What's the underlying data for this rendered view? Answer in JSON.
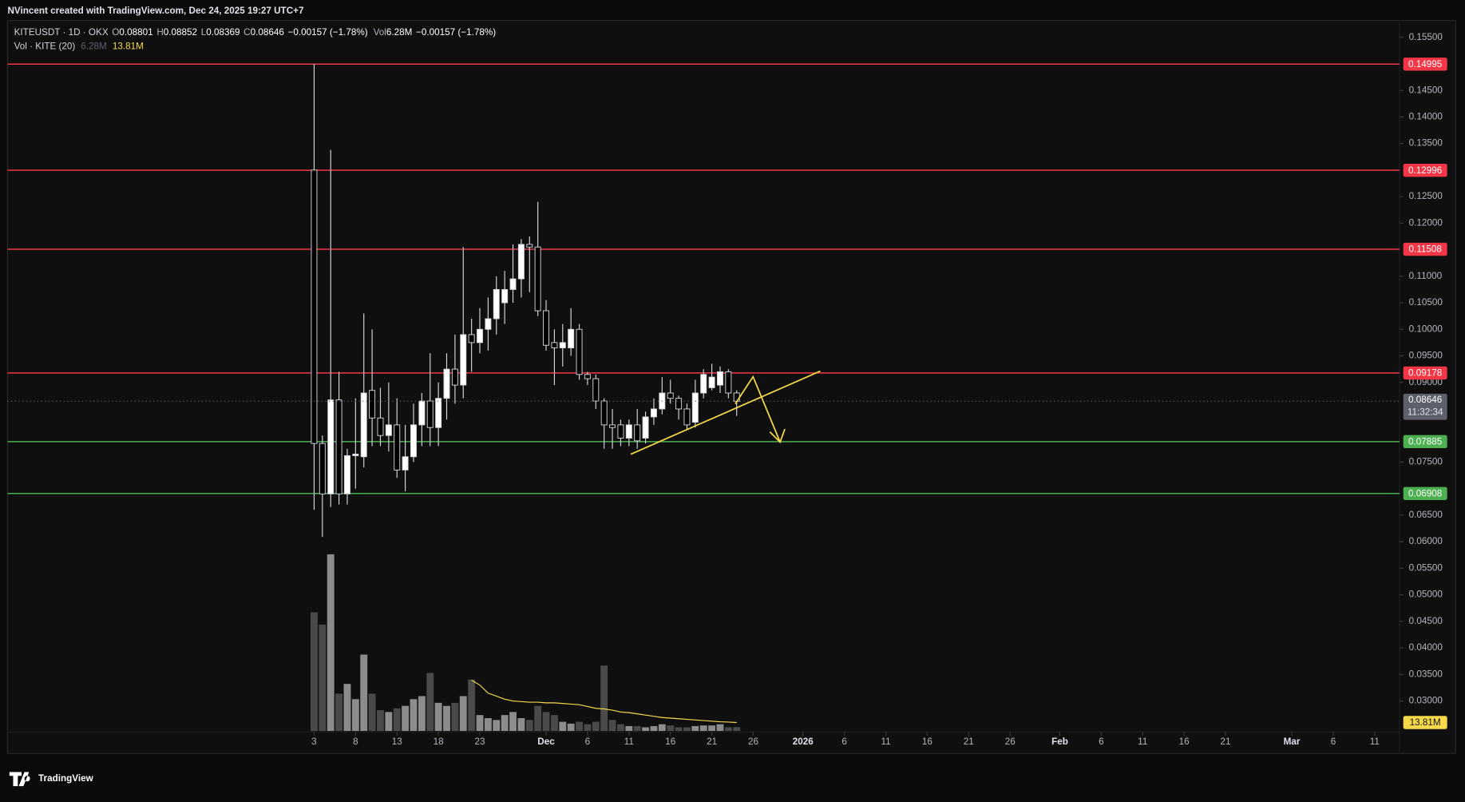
{
  "header": {
    "caption": "NVincent created with TradingView.com, Dec 24, 2025 19:27 UTC+7"
  },
  "footer": {
    "brand": "TradingView"
  },
  "chart_data": {
    "type": "candlestick",
    "symbol": "KITEUSDT · 1D · OKX",
    "legend_keys": [
      "O",
      "H",
      "L",
      "C"
    ],
    "change": "−0.00157 (−1.78%)",
    "volume_key": "Vol",
    "volume_label": "6.28M",
    "volume_indicator": "Vol · KITE (20)",
    "volume_ma_label": "13.81M",
    "countdown": "11:32:34",
    "up_color": "#ffffff",
    "down_color": "#000000",
    "wick_color": "#d1d4dc",
    "volume_up_color": "#8c8c8c",
    "volume_down_color": "#4a4a4a",
    "volume_ma_color": "#f5d94a",
    "last_price_color": "#5d606b",
    "x": [
      "2025-11-03",
      "2025-11-04",
      "2025-11-05",
      "2025-11-06",
      "2025-11-07",
      "2025-11-08",
      "2025-11-09",
      "2025-11-10",
      "2025-11-11",
      "2025-11-12",
      "2025-11-13",
      "2025-11-14",
      "2025-11-15",
      "2025-11-16",
      "2025-11-17",
      "2025-11-18",
      "2025-11-19",
      "2025-11-20",
      "2025-11-21",
      "2025-11-22",
      "2025-11-23",
      "2025-11-24",
      "2025-11-25",
      "2025-11-26",
      "2025-11-27",
      "2025-11-28",
      "2025-11-29",
      "2025-11-30",
      "2025-12-01",
      "2025-12-02",
      "2025-12-03",
      "2025-12-04",
      "2025-12-05",
      "2025-12-06",
      "2025-12-07",
      "2025-12-08",
      "2025-12-09",
      "2025-12-10",
      "2025-12-11",
      "2025-12-12",
      "2025-12-13",
      "2025-12-14",
      "2025-12-15",
      "2025-12-16",
      "2025-12-17",
      "2025-12-18",
      "2025-12-19",
      "2025-12-20",
      "2025-12-21",
      "2025-12-22",
      "2025-12-23",
      "2025-12-24"
    ],
    "open": [
      0.13,
      0.0785,
      0.069,
      0.0867,
      0.069,
      0.0762,
      0.076,
      0.0885,
      0.0833,
      0.08,
      0.082,
      0.0735,
      0.076,
      0.082,
      0.0865,
      0.0815,
      0.087,
      0.0925,
      0.0895,
      0.099,
      0.0975,
      0.1,
      0.102,
      0.105,
      0.1075,
      0.1095,
      0.116,
      0.1155,
      0.1035,
      0.0975,
      0.0965,
      0.0965,
      0.1,
      0.0915,
      0.0907,
      0.0865,
      0.082,
      0.082,
      0.0795,
      0.082,
      0.0795,
      0.0835,
      0.085,
      0.088,
      0.087,
      0.085,
      0.0825,
      0.088,
      0.089,
      0.0895,
      0.092,
      0.08801
    ],
    "high": [
      0.15,
      0.08,
      0.1338,
      0.092,
      0.0775,
      0.087,
      0.103,
      0.1,
      0.089,
      0.09,
      0.087,
      0.082,
      0.086,
      0.088,
      0.0955,
      0.09,
      0.0955,
      0.099,
      0.1155,
      0.102,
      0.104,
      0.106,
      0.11,
      0.111,
      0.116,
      0.117,
      0.1175,
      0.124,
      0.1055,
      0.1,
      0.101,
      0.104,
      0.101,
      0.092,
      0.0915,
      0.087,
      0.085,
      0.083,
      0.083,
      0.085,
      0.0845,
      0.087,
      0.091,
      0.0905,
      0.0875,
      0.086,
      0.0905,
      0.0925,
      0.0935,
      0.093,
      0.0925,
      0.08852
    ],
    "low": [
      0.066,
      0.0609,
      0.0665,
      0.067,
      0.067,
      0.07,
      0.074,
      0.078,
      0.078,
      0.077,
      0.072,
      0.0695,
      0.075,
      0.078,
      0.078,
      0.078,
      0.083,
      0.086,
      0.087,
      0.092,
      0.0955,
      0.096,
      0.099,
      0.101,
      0.105,
      0.106,
      0.107,
      0.1025,
      0.096,
      0.0895,
      0.093,
      0.095,
      0.0905,
      0.0895,
      0.085,
      0.0775,
      0.0775,
      0.078,
      0.078,
      0.0775,
      0.0785,
      0.082,
      0.084,
      0.086,
      0.083,
      0.081,
      0.0815,
      0.087,
      0.0885,
      0.088,
      0.087,
      0.08369
    ],
    "close": [
      0.0785,
      0.069,
      0.0867,
      0.069,
      0.0762,
      0.0765,
      0.088,
      0.0833,
      0.08,
      0.082,
      0.0735,
      0.076,
      0.082,
      0.0865,
      0.0815,
      0.087,
      0.0925,
      0.0895,
      0.099,
      0.0975,
      0.1,
      0.102,
      0.1075,
      0.1075,
      0.1095,
      0.116,
      0.1155,
      0.1035,
      0.097,
      0.0965,
      0.0975,
      0.1,
      0.0915,
      0.0907,
      0.0865,
      0.082,
      0.0815,
      0.0795,
      0.082,
      0.079,
      0.0835,
      0.085,
      0.088,
      0.087,
      0.085,
      0.082,
      0.088,
      0.0915,
      0.091,
      0.092,
      0.088,
      0.08646
    ],
    "volume": [
      194000000,
      174000000,
      289000000,
      61000000,
      77000000,
      52000000,
      125000000,
      61000000,
      34000000,
      31000000,
      37000000,
      41000000,
      52000000,
      57000000,
      95000000,
      46000000,
      41000000,
      46000000,
      57000000,
      84000000,
      26000000,
      21000000,
      18000000,
      26000000,
      31000000,
      21000000,
      18000000,
      41000000,
      31000000,
      26000000,
      15000000,
      12000000,
      15000000,
      11000000,
      15000000,
      107000000,
      18000000,
      11000000,
      8000000,
      8000000,
      6000000,
      8000000,
      11000000,
      9000000,
      6000000,
      6000000,
      8000000,
      9000000,
      9000000,
      11000000,
      6000000,
      6280000
    ],
    "volume_ma": [
      null,
      null,
      null,
      null,
      null,
      null,
      null,
      null,
      null,
      null,
      null,
      null,
      null,
      null,
      null,
      null,
      null,
      null,
      null,
      83000000,
      75000000,
      62000000,
      57000000,
      52000000,
      49000000,
      48000000,
      47000000,
      47000000,
      46000000,
      46000000,
      45000000,
      44000000,
      43000000,
      40000000,
      37000000,
      36000000,
      34000000,
      31000000,
      30000000,
      28000000,
      26000000,
      24000000,
      22000000,
      21000000,
      20000000,
      19000000,
      18000000,
      17000000,
      16000000,
      15000000,
      14500000,
      13810000
    ],
    "levels": [
      {
        "value": 0.14995,
        "color": "#f23645"
      },
      {
        "value": 0.12996,
        "color": "#f23645"
      },
      {
        "value": 0.11508,
        "color": "#f23645"
      },
      {
        "value": 0.09178,
        "color": "#f23645"
      },
      {
        "value": 0.07885,
        "color": "#4caf50"
      },
      {
        "value": 0.06908,
        "color": "#4caf50"
      }
    ],
    "xlim": [
      "2025-09-27",
      "2026-03-14"
    ],
    "xticks": [
      {
        "value": "2025-11-03",
        "label": "3"
      },
      {
        "value": "2025-11-08",
        "label": "8"
      },
      {
        "value": "2025-11-13",
        "label": "13"
      },
      {
        "value": "2025-11-18",
        "label": "18"
      },
      {
        "value": "2025-11-23",
        "label": "23"
      },
      {
        "value": "2025-12-01",
        "label": "Dec"
      },
      {
        "value": "2025-12-06",
        "label": "6"
      },
      {
        "value": "2025-12-11",
        "label": "11"
      },
      {
        "value": "2025-12-16",
        "label": "16"
      },
      {
        "value": "2025-12-21",
        "label": "21"
      },
      {
        "value": "2025-12-26",
        "label": "26"
      },
      {
        "value": "2026-01-01",
        "label": "2026"
      },
      {
        "value": "2026-01-06",
        "label": "6"
      },
      {
        "value": "2026-01-11",
        "label": "11"
      },
      {
        "value": "2026-01-16",
        "label": "16"
      },
      {
        "value": "2026-01-21",
        "label": "21"
      },
      {
        "value": "2026-01-26",
        "label": "26"
      },
      {
        "value": "2026-02-01",
        "label": "Feb"
      },
      {
        "value": "2026-02-06",
        "label": "6"
      },
      {
        "value": "2026-02-11",
        "label": "11"
      },
      {
        "value": "2026-02-16",
        "label": "16"
      },
      {
        "value": "2026-02-21",
        "label": "21"
      },
      {
        "value": "2026-03-01",
        "label": "Mar"
      },
      {
        "value": "2026-03-06",
        "label": "6"
      },
      {
        "value": "2026-03-11",
        "label": "11"
      }
    ],
    "ylim": [
      0.0203,
      0.1571
    ],
    "yticks": [
      {
        "value": 0.155,
        "label": "0.15500"
      },
      {
        "value": 0.145,
        "label": "0.14500"
      },
      {
        "value": 0.14,
        "label": "0.14000"
      },
      {
        "value": 0.135,
        "label": "0.13500"
      },
      {
        "value": 0.125,
        "label": "0.12500"
      },
      {
        "value": 0.12,
        "label": "0.12000"
      },
      {
        "value": 0.11,
        "label": "0.11000"
      },
      {
        "value": 0.105,
        "label": "0.10500"
      },
      {
        "value": 0.1,
        "label": "0.10000"
      },
      {
        "value": 0.095,
        "label": "0.09500"
      },
      {
        "value": 0.09,
        "label": "0.09000"
      },
      {
        "value": 0.075,
        "label": "0.07500"
      },
      {
        "value": 0.065,
        "label": "0.06500"
      },
      {
        "value": 0.06,
        "label": "0.06000"
      },
      {
        "value": 0.055,
        "label": "0.05500"
      },
      {
        "value": 0.05,
        "label": "0.05000"
      },
      {
        "value": 0.045,
        "label": "0.04500"
      },
      {
        "value": 0.04,
        "label": "0.04000"
      },
      {
        "value": 0.035,
        "label": "0.03500"
      },
      {
        "value": 0.03,
        "label": "0.03000"
      }
    ],
    "grid": false
  }
}
